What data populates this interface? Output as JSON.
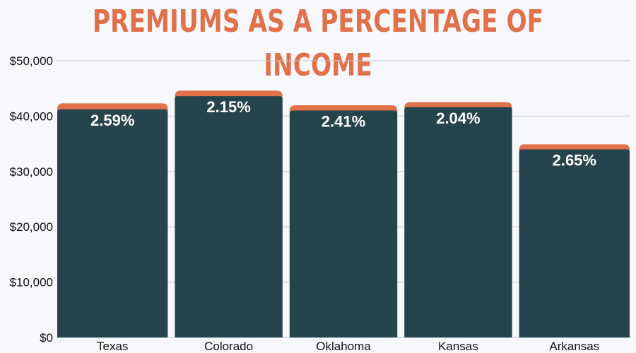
{
  "colors": {
    "title": "#e0714b",
    "bar_main": "#26444d",
    "bar_cap": "#e0714b",
    "grid": "#c4c6cc",
    "background": "#f7f8fc"
  },
  "chart_data": {
    "type": "bar",
    "title": "PREMIUMS AS A PERCENTAGE OF INCOME",
    "xlabel": "",
    "ylabel": "",
    "ylim": [
      0,
      50000
    ],
    "grid": true,
    "y_ticks": [
      0,
      10000,
      20000,
      30000,
      40000,
      50000
    ],
    "y_tick_labels": [
      "$0",
      "$10,000",
      "$20,000",
      "$30,000",
      "$40,000",
      "$50,000"
    ],
    "categories": [
      "Texas",
      "Colorado",
      "Oklahoma",
      "Kansas",
      "Arkansas"
    ],
    "series": [
      {
        "values": [
          41200,
          43600,
          41000,
          41600,
          34000
        ]
      },
      {
        "values": [
          1100,
          1000,
          950,
          900,
          900
        ]
      }
    ],
    "data_labels": [
      "2.59%",
      "2.15%",
      "2.41%",
      "2.04%",
      "2.65%"
    ]
  }
}
